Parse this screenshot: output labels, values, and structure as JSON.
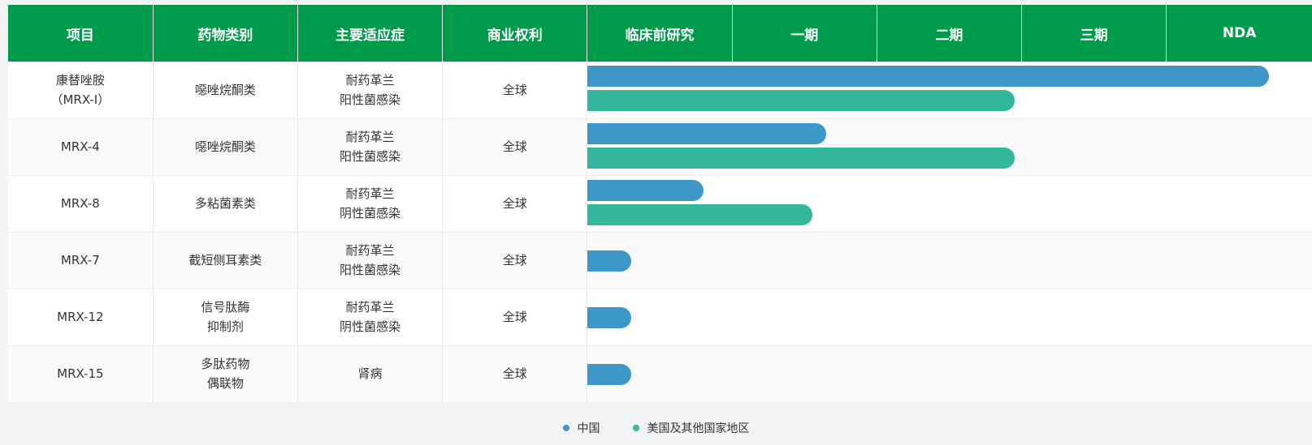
{
  "colors": {
    "header_bg": "#009a4b",
    "china": "#3d98c9",
    "us_other": "#33b89e"
  },
  "headers": [
    "项目",
    "药物类别",
    "主要适应症",
    "商业权利",
    "临床前研究",
    "一期",
    "二期",
    "三期",
    "NDA"
  ],
  "legend": [
    {
      "label": "中国",
      "color": "#3d98c9"
    },
    {
      "label": "美国及其他国家地区",
      "color": "#33b89e"
    }
  ],
  "rows": [
    {
      "project": "康替唑胺\n（MRX-I）",
      "drug_class": "噁唑烷酮类",
      "indication": "耐药革兰\n阳性菌感染",
      "rights": "全球",
      "china_progress": 0.94,
      "us_progress": 0.59
    },
    {
      "project": "MRX-4",
      "drug_class": "噁唑烷酮类",
      "indication": "耐药革兰\n阳性菌感染",
      "rights": "全球",
      "china_progress": 0.33,
      "us_progress": 0.59
    },
    {
      "project": "MRX-8",
      "drug_class": "多粘菌素类",
      "indication": "耐药革兰\n阴性菌感染",
      "rights": "全球",
      "china_progress": 0.16,
      "us_progress": 0.31
    },
    {
      "project": "MRX-7",
      "drug_class": "截短侧耳素类",
      "indication": "耐药革兰\n阳性菌感染",
      "rights": "全球",
      "china_progress": 0.06,
      "us_progress": null
    },
    {
      "project": "MRX-12",
      "drug_class": "信号肽酶\n抑制剂",
      "indication": "耐药革兰\n阴性菌感染",
      "rights": "全球",
      "china_progress": 0.06,
      "us_progress": null
    },
    {
      "project": "MRX-15",
      "drug_class": "多肽药物\n偶联物",
      "indication": "肾病",
      "rights": "全球",
      "china_progress": 0.06,
      "us_progress": null
    }
  ]
}
